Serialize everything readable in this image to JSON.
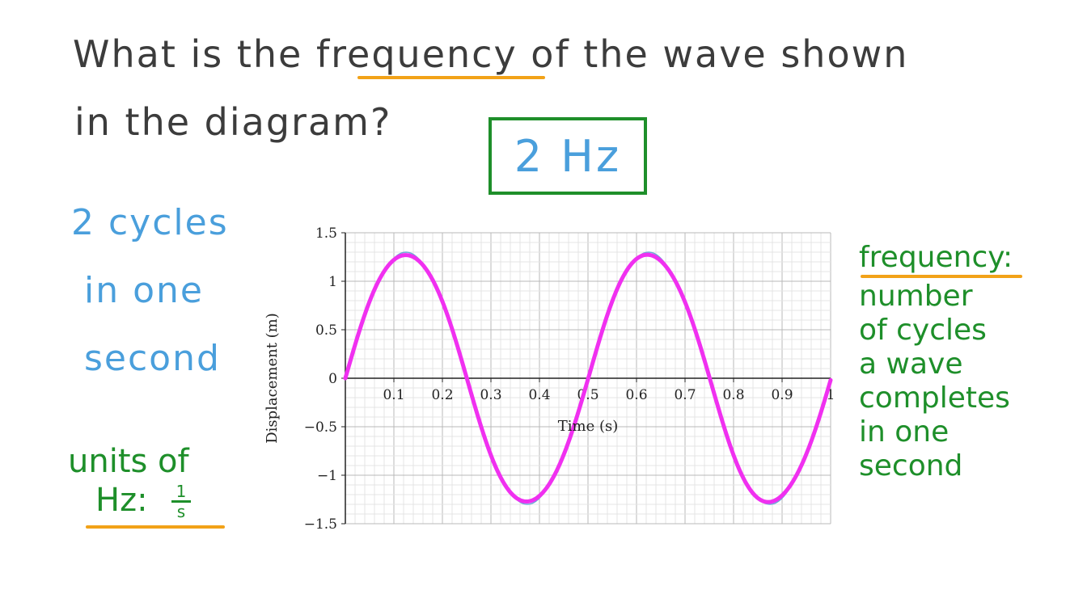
{
  "question": {
    "line1": "What is the frequency of the wave shown",
    "line2": "in the diagram?"
  },
  "answer": "2 Hz",
  "notes": {
    "cycles": [
      "2 cycles",
      "in one",
      "second"
    ],
    "units_line1": "units of",
    "units_line2": "Hz:",
    "units_fraction_num": "1",
    "units_fraction_den": "s"
  },
  "definition": {
    "term": "frequency:",
    "lines": [
      "number",
      "of cycles",
      "a wave",
      "completes",
      "in one",
      "second"
    ]
  },
  "colors": {
    "question_text": "#3c3c3c",
    "highlight": "#f2a218",
    "blue_text": "#4a9fdc",
    "green_text": "#1e8f2a",
    "traced_wave": "#f030f0",
    "original_wave": "#6aa8d8"
  },
  "chart_data": {
    "type": "line",
    "xlabel": "Time (s)",
    "ylabel": "Displacement (m)",
    "xlim": [
      0,
      1
    ],
    "ylim": [
      -1.5,
      1.5
    ],
    "x_ticks": [
      0.1,
      0.2,
      0.3,
      0.4,
      0.5,
      0.6,
      0.7,
      0.8,
      0.9,
      1
    ],
    "x_tick_labels": [
      "0.1",
      "0.2",
      "0.3",
      "0.4",
      "0.5",
      "0.6",
      "0.7",
      "0.8",
      "0.9",
      "1"
    ],
    "y_ticks": [
      1.5,
      1,
      0.5,
      0,
      -0.5,
      -1,
      -1.5
    ],
    "y_tick_labels": [
      "1.5",
      "1",
      "0.5",
      "0",
      "−0.5",
      "−1",
      "−1.5"
    ],
    "grid": true,
    "series": [
      {
        "amplitude": 1.3,
        "frequency": 2,
        "x": [
          0,
          0.125,
          0.25,
          0.375,
          0.5,
          0.625,
          0.75,
          0.875,
          1
        ],
        "values": [
          0,
          1.3,
          0,
          -1.3,
          0,
          1.3,
          0,
          -1.3,
          0
        ]
      }
    ]
  }
}
